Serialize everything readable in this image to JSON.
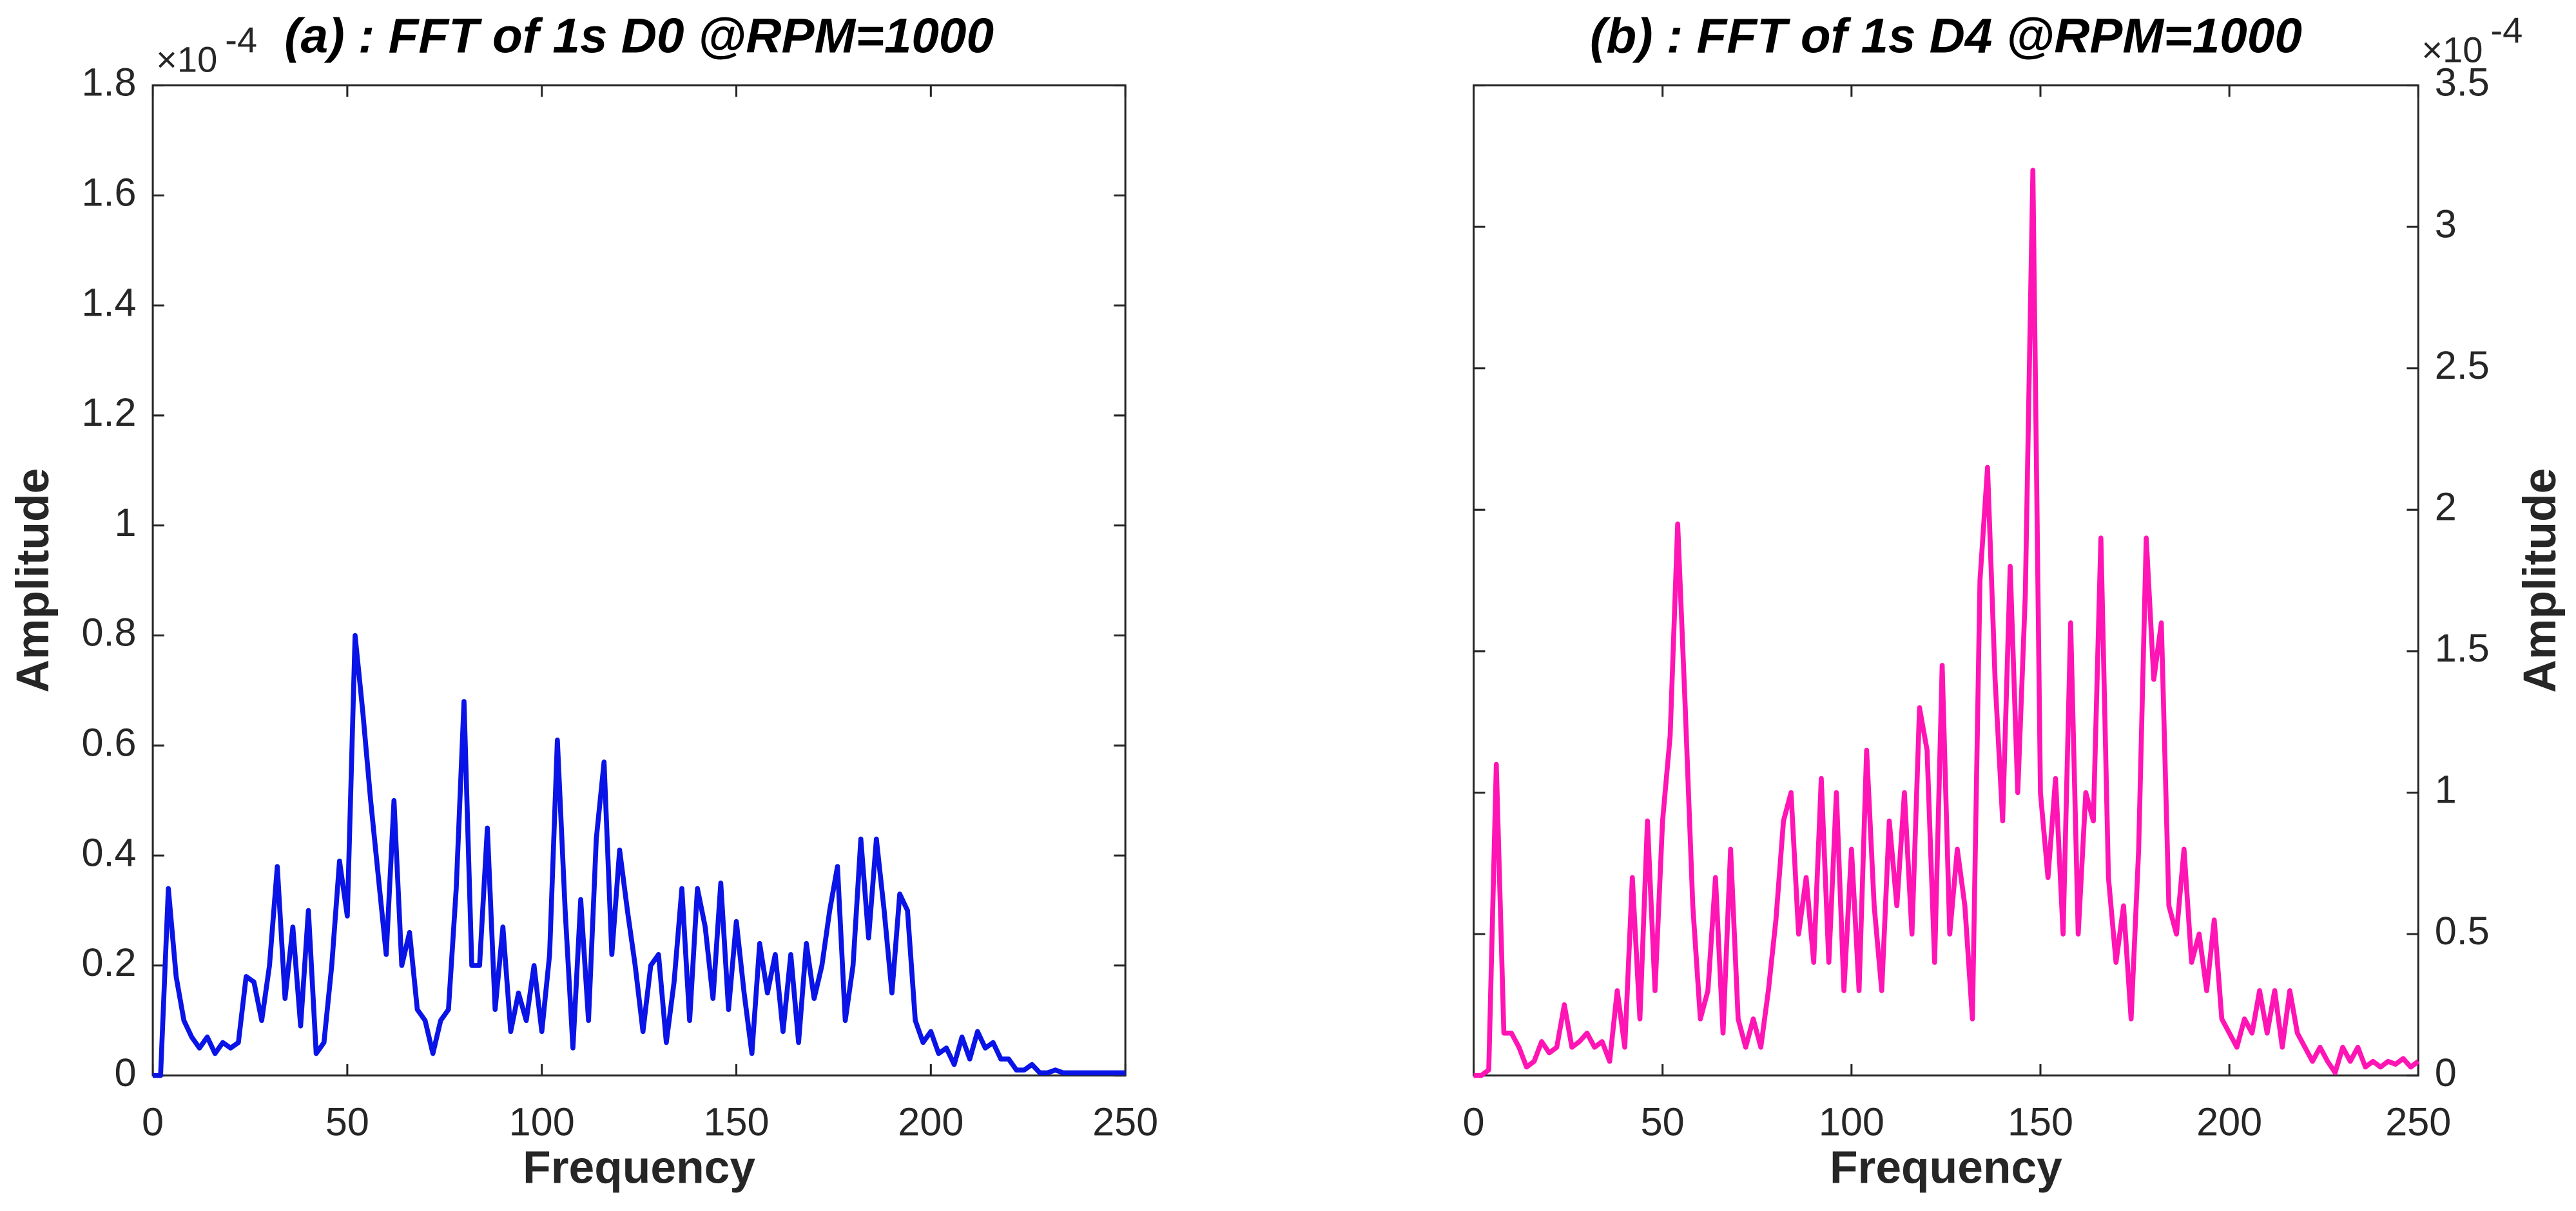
{
  "chart_data": [
    {
      "type": "line",
      "title": "(a) : FFT of 1s D0 @RPM=1000",
      "xlabel": "Frequency",
      "ylabel": "Amplitude",
      "y_multiplier": {
        "base": "×10",
        "exponent": "-4"
      },
      "y_axis_side": "left",
      "color": "#0a14e6",
      "xlim": [
        0,
        250
      ],
      "xticks": [
        0,
        50,
        100,
        150,
        200,
        250
      ],
      "ylim": [
        0,
        1.8
      ],
      "yticks": [
        0,
        0.2,
        0.4,
        0.6,
        0.8,
        1,
        1.2,
        1.4,
        1.6,
        1.8
      ],
      "x": [
        0,
        2,
        4,
        6,
        8,
        10,
        12,
        14,
        16,
        18,
        20,
        22,
        24,
        26,
        28,
        30,
        32,
        34,
        36,
        38,
        40,
        42,
        44,
        46,
        48,
        50,
        52,
        54,
        56,
        58,
        60,
        62,
        64,
        66,
        68,
        70,
        72,
        74,
        76,
        78,
        80,
        82,
        84,
        86,
        88,
        90,
        92,
        94,
        96,
        98,
        100,
        102,
        104,
        106,
        108,
        110,
        112,
        114,
        116,
        118,
        120,
        122,
        124,
        126,
        128,
        130,
        132,
        134,
        136,
        138,
        140,
        142,
        144,
        146,
        148,
        150,
        152,
        154,
        156,
        158,
        160,
        162,
        164,
        166,
        168,
        170,
        172,
        174,
        176,
        178,
        180,
        182,
        184,
        186,
        188,
        190,
        192,
        194,
        196,
        198,
        200,
        202,
        204,
        206,
        208,
        210,
        212,
        214,
        216,
        218,
        220,
        222,
        224,
        226,
        228,
        230,
        232,
        234,
        236,
        238,
        240,
        242,
        244,
        246,
        248,
        250
      ],
      "values": [
        0,
        0,
        0.34,
        0.18,
        0.1,
        0.07,
        0.05,
        0.07,
        0.04,
        0.06,
        0.05,
        0.06,
        0.18,
        0.17,
        0.1,
        0.2,
        0.38,
        0.14,
        0.27,
        0.09,
        0.3,
        0.04,
        0.06,
        0.2,
        0.39,
        0.29,
        0.8,
        0.66,
        0.5,
        0.36,
        0.22,
        0.5,
        0.2,
        0.26,
        0.12,
        0.1,
        0.04,
        0.1,
        0.12,
        0.34,
        0.68,
        0.2,
        0.2,
        0.45,
        0.12,
        0.27,
        0.08,
        0.15,
        0.1,
        0.2,
        0.08,
        0.22,
        0.61,
        0.3,
        0.05,
        0.32,
        0.1,
        0.43,
        0.57,
        0.22,
        0.41,
        0.3,
        0.2,
        0.08,
        0.2,
        0.22,
        0.06,
        0.17,
        0.34,
        0.1,
        0.34,
        0.27,
        0.14,
        0.35,
        0.12,
        0.28,
        0.15,
        0.04,
        0.24,
        0.15,
        0.22,
        0.08,
        0.22,
        0.06,
        0.24,
        0.14,
        0.2,
        0.3,
        0.38,
        0.1,
        0.2,
        0.43,
        0.25,
        0.43,
        0.3,
        0.15,
        0.33,
        0.3,
        0.1,
        0.06,
        0.08,
        0.04,
        0.05,
        0.02,
        0.07,
        0.03,
        0.08,
        0.05,
        0.06,
        0.03,
        0.03,
        0.01,
        0.01,
        0.02,
        0.005,
        0.005,
        0.01,
        0.005,
        0.005,
        0.005,
        0.005,
        0.005,
        0.005,
        0.005,
        0.005,
        0.005
      ]
    },
    {
      "type": "line",
      "title": "(b) : FFT of 1s D4 @RPM=1000",
      "xlabel": "Frequency",
      "ylabel": "Amplitude",
      "y_multiplier": {
        "base": "×10",
        "exponent": "-4"
      },
      "y_axis_side": "right",
      "color": "#ff14b4",
      "xlim": [
        0,
        250
      ],
      "xticks": [
        0,
        50,
        100,
        150,
        200,
        250
      ],
      "ylim": [
        0,
        3.5
      ],
      "yticks": [
        0,
        0.5,
        1,
        1.5,
        2,
        2.5,
        3,
        3.5
      ],
      "x": [
        0,
        2,
        4,
        6,
        8,
        10,
        12,
        14,
        16,
        18,
        20,
        22,
        24,
        26,
        28,
        30,
        32,
        34,
        36,
        38,
        40,
        42,
        44,
        46,
        48,
        50,
        52,
        54,
        56,
        58,
        60,
        62,
        64,
        66,
        68,
        70,
        72,
        74,
        76,
        78,
        80,
        82,
        84,
        86,
        88,
        90,
        92,
        94,
        96,
        98,
        100,
        102,
        104,
        106,
        108,
        110,
        112,
        114,
        116,
        118,
        120,
        122,
        124,
        126,
        128,
        130,
        132,
        134,
        136,
        138,
        140,
        142,
        144,
        146,
        148,
        150,
        152,
        154,
        156,
        158,
        160,
        162,
        164,
        166,
        168,
        170,
        172,
        174,
        176,
        178,
        180,
        182,
        184,
        186,
        188,
        190,
        192,
        194,
        196,
        198,
        200,
        202,
        204,
        206,
        208,
        210,
        212,
        214,
        216,
        218,
        220,
        222,
        224,
        226,
        228,
        230,
        232,
        234,
        236,
        238,
        240,
        242,
        244,
        246,
        248,
        250
      ],
      "values": [
        0,
        0,
        0.02,
        1.1,
        0.15,
        0.15,
        0.1,
        0.03,
        0.05,
        0.12,
        0.08,
        0.1,
        0.25,
        0.1,
        0.12,
        0.15,
        0.1,
        0.12,
        0.05,
        0.3,
        0.1,
        0.7,
        0.2,
        0.9,
        0.3,
        0.9,
        1.2,
        1.95,
        1.3,
        0.6,
        0.2,
        0.3,
        0.7,
        0.15,
        0.8,
        0.2,
        0.1,
        0.2,
        0.1,
        0.3,
        0.55,
        0.9,
        1.0,
        0.5,
        0.7,
        0.4,
        1.05,
        0.4,
        1.0,
        0.3,
        0.8,
        0.3,
        1.15,
        0.6,
        0.3,
        0.9,
        0.6,
        1.0,
        0.5,
        1.3,
        1.15,
        0.4,
        1.45,
        0.5,
        0.8,
        0.6,
        0.2,
        1.75,
        2.15,
        1.4,
        0.9,
        1.8,
        1.0,
        1.7,
        3.2,
        1.0,
        0.7,
        1.05,
        0.5,
        1.6,
        0.5,
        1.0,
        0.9,
        1.9,
        0.7,
        0.4,
        0.6,
        0.2,
        0.8,
        1.9,
        1.4,
        1.6,
        0.6,
        0.5,
        0.8,
        0.4,
        0.5,
        0.3,
        0.55,
        0.2,
        0.15,
        0.1,
        0.2,
        0.15,
        0.3,
        0.15,
        0.3,
        0.1,
        0.3,
        0.15,
        0.1,
        0.05,
        0.1,
        0.05,
        0.01,
        0.1,
        0.05,
        0.1,
        0.03,
        0.05,
        0.03,
        0.05,
        0.04,
        0.06,
        0.03,
        0.05
      ]
    }
  ]
}
